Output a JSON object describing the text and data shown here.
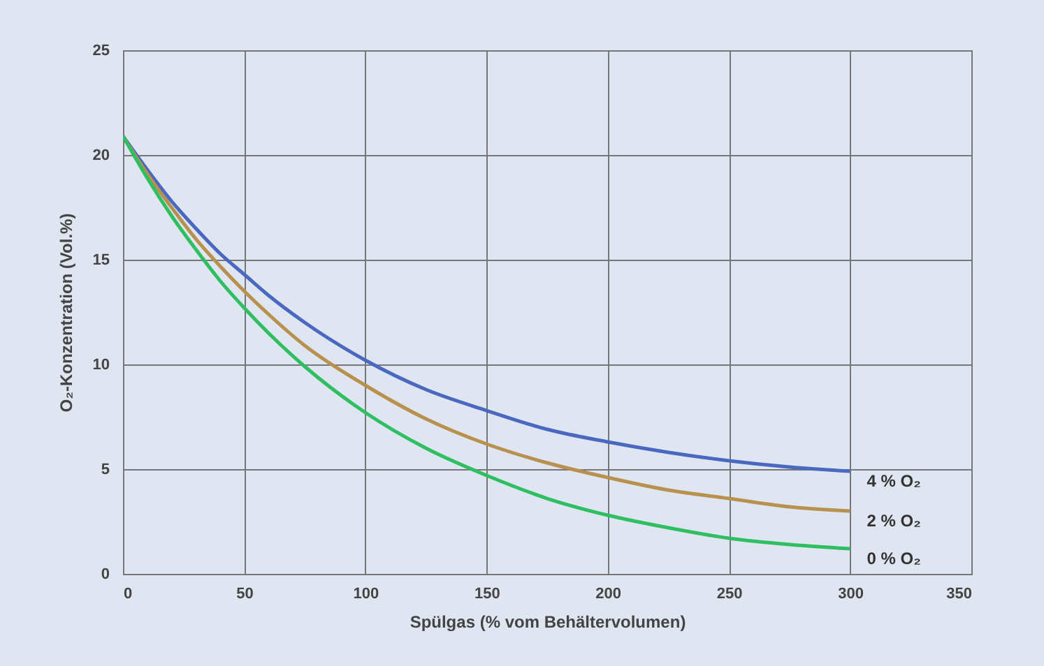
{
  "chart_data": {
    "type": "line",
    "xlabel": "Spülgas (% vom Behältervolumen)",
    "ylabel": "O₂-Konzentration (Vol.%)",
    "x": [
      0,
      10,
      20,
      30,
      40,
      50,
      60,
      75,
      100,
      125,
      150,
      175,
      200,
      225,
      250,
      275,
      300
    ],
    "series": [
      {
        "name": "4 % O₂",
        "color": "#4a68c0",
        "values": [
          20.9,
          19.3,
          17.8,
          16.5,
          15.3,
          14.3,
          13.3,
          12.0,
          10.2,
          8.8,
          7.8,
          6.9,
          6.3,
          5.8,
          5.4,
          5.1,
          4.9
        ]
      },
      {
        "name": "2 % O₂",
        "color": "#b8914e",
        "values": [
          20.9,
          19.1,
          17.5,
          16.0,
          14.7,
          13.5,
          12.4,
          10.9,
          9.0,
          7.4,
          6.2,
          5.3,
          4.6,
          4.0,
          3.6,
          3.2,
          3.0
        ]
      },
      {
        "name": "0 % O₂",
        "color": "#2fbf62",
        "values": [
          20.9,
          18.9,
          17.1,
          15.5,
          14.0,
          12.7,
          11.5,
          9.9,
          7.7,
          6.0,
          4.7,
          3.6,
          2.8,
          2.2,
          1.7,
          1.4,
          1.2
        ]
      }
    ],
    "xlim": [
      0,
      350
    ],
    "xticks": [
      0,
      50,
      100,
      150,
      200,
      250,
      300,
      350
    ],
    "ylim": [
      0,
      25
    ],
    "yticks": [
      0,
      5,
      10,
      15,
      20,
      25
    ],
    "grid": true,
    "legend": false
  }
}
